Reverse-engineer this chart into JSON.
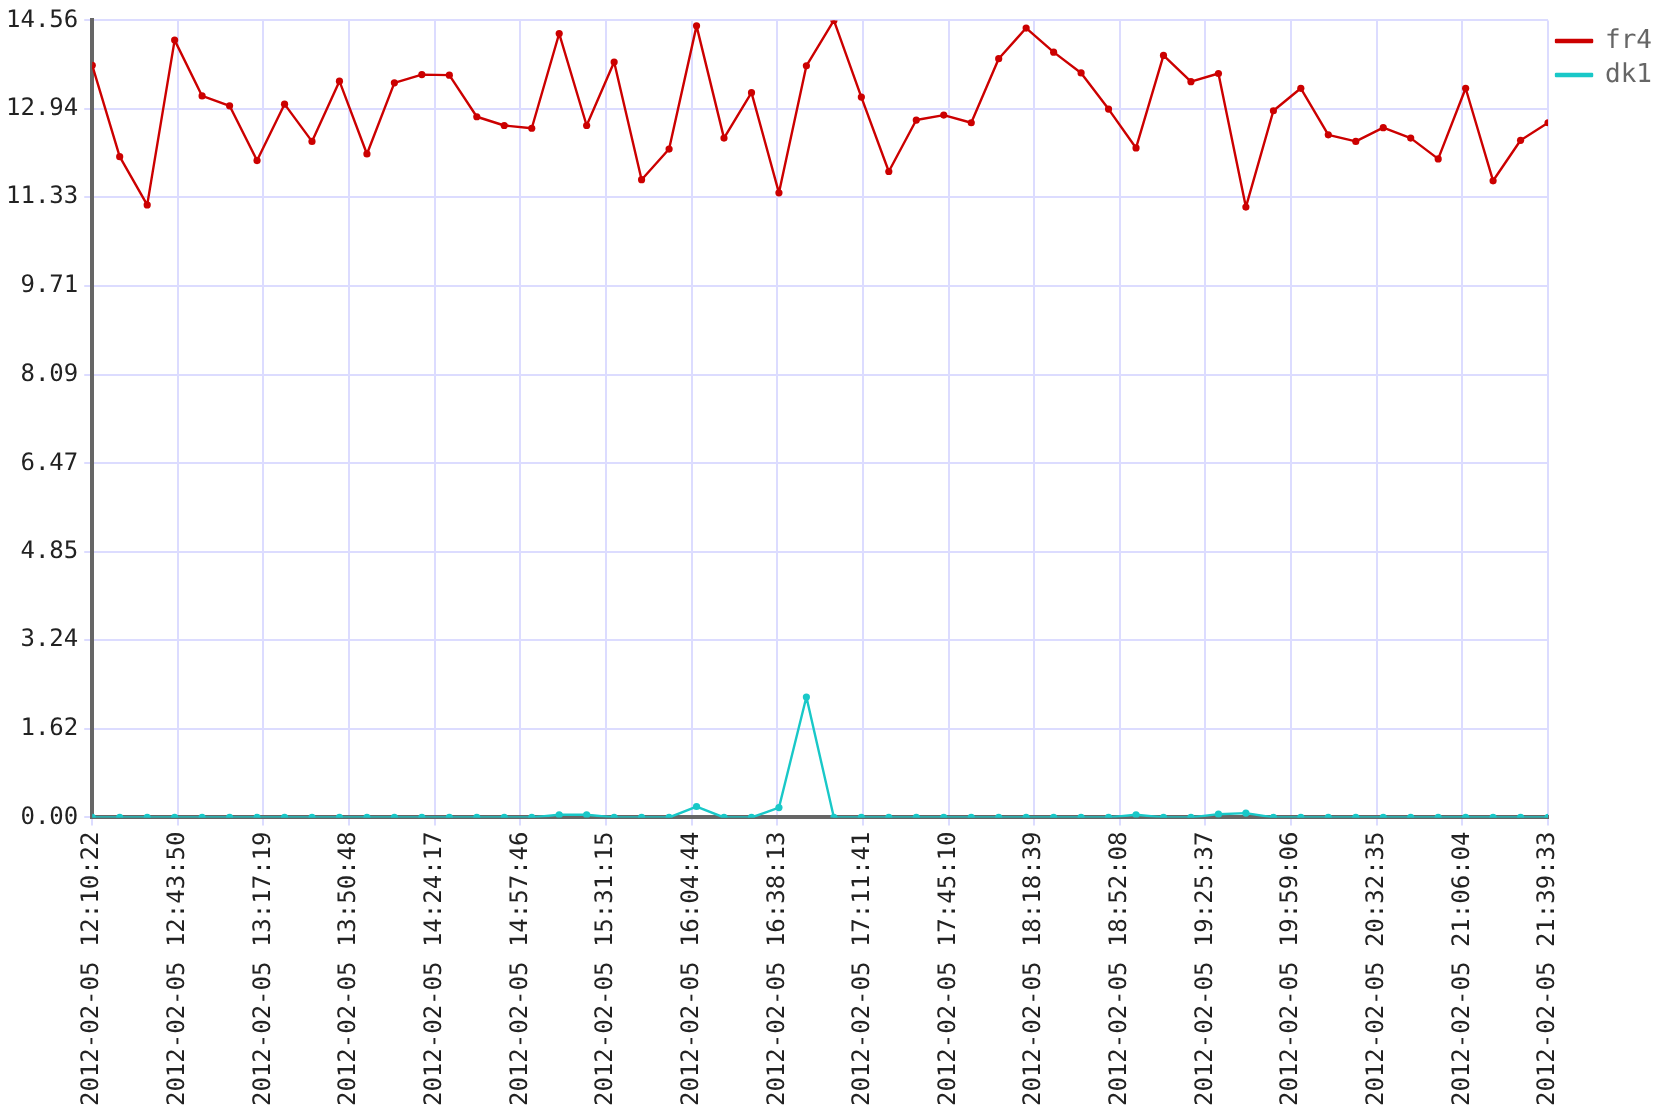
{
  "chart_data": {
    "type": "line",
    "x": [
      "2012-02-05T12:10:22",
      "2012-02-05T12:21:06",
      "2012-02-05T12:31:51",
      "2012-02-05T12:42:35",
      "2012-02-05T12:53:19",
      "2012-02-05T13:04:04",
      "2012-02-05T13:14:48",
      "2012-02-05T13:25:33",
      "2012-02-05T13:36:17",
      "2012-02-05T13:47:01",
      "2012-02-05T13:57:46",
      "2012-02-05T14:08:30",
      "2012-02-05T14:19:14",
      "2012-02-05T14:29:59",
      "2012-02-05T14:40:43",
      "2012-02-05T14:51:27",
      "2012-02-05T15:02:12",
      "2012-02-05T15:12:56",
      "2012-02-05T15:23:40",
      "2012-02-05T15:34:25",
      "2012-02-05T15:45:09",
      "2012-02-05T15:55:54",
      "2012-02-05T16:06:38",
      "2012-02-05T16:17:22",
      "2012-02-05T16:28:07",
      "2012-02-05T16:38:51",
      "2012-02-05T16:49:35",
      "2012-02-05T17:00:20",
      "2012-02-05T17:11:04",
      "2012-02-05T17:21:48",
      "2012-02-05T17:32:33",
      "2012-02-05T17:43:17",
      "2012-02-05T17:54:02",
      "2012-02-05T18:04:46",
      "2012-02-05T18:15:30",
      "2012-02-05T18:26:15",
      "2012-02-05T18:36:59",
      "2012-02-05T18:47:43",
      "2012-02-05T18:58:28",
      "2012-02-05T19:09:12",
      "2012-02-05T19:19:56",
      "2012-02-05T19:30:41",
      "2012-02-05T19:41:25",
      "2012-02-05T19:52:10",
      "2012-02-05T20:02:54",
      "2012-02-05T20:13:38",
      "2012-02-05T20:24:23",
      "2012-02-05T20:35:07",
      "2012-02-05T20:45:51",
      "2012-02-05T20:56:36",
      "2012-02-05T21:07:20",
      "2012-02-05T21:18:04",
      "2012-02-05T21:28:49",
      "2012-02-05T21:39:33"
    ],
    "series": [
      {
        "name": "fr4",
        "color": "#cc0000",
        "values": [
          13.74,
          12.07,
          11.19,
          14.2,
          13.18,
          13.0,
          12.0,
          13.03,
          12.35,
          13.45,
          12.12,
          13.42,
          13.57,
          13.56,
          12.8,
          12.64,
          12.59,
          14.32,
          12.64,
          13.8,
          11.65,
          12.21,
          14.46,
          12.41,
          13.24,
          11.41,
          13.73,
          14.56,
          13.16,
          11.8,
          12.74,
          12.83,
          12.69,
          13.86,
          14.42,
          13.98,
          13.6,
          12.94,
          12.23,
          13.92,
          13.44,
          13.59,
          11.15,
          12.91,
          13.32,
          12.47,
          12.35,
          12.6,
          12.41,
          12.03,
          13.32,
          11.63,
          12.37,
          12.69
        ]
      },
      {
        "name": "dk1",
        "color": "#19c8c8",
        "values": [
          0,
          0,
          0,
          0,
          0,
          0,
          0,
          0,
          0,
          0,
          0,
          0,
          0,
          0,
          0,
          0,
          0,
          0.05,
          0.05,
          0,
          0,
          0,
          0.2,
          0,
          0,
          0.18,
          2.2,
          0,
          0,
          0,
          0,
          0,
          0,
          0,
          0,
          0,
          0,
          0,
          0.05,
          0,
          0,
          0.06,
          0.08,
          0,
          0,
          0,
          0,
          0,
          0,
          0,
          0,
          0,
          0,
          0
        ]
      }
    ],
    "xlim": [
      "2012-02-05T12:10:22",
      "2012-02-05T21:39:33"
    ],
    "xticks": [
      {
        "value": "2012-02-05T12:10:22",
        "label": "2012-02-05 12:10:22"
      },
      {
        "value": "2012-02-05T12:43:50",
        "label": "2012-02-05 12:43:50"
      },
      {
        "value": "2012-02-05T13:17:19",
        "label": "2012-02-05 13:17:19"
      },
      {
        "value": "2012-02-05T13:50:48",
        "label": "2012-02-05 13:50:48"
      },
      {
        "value": "2012-02-05T14:24:17",
        "label": "2012-02-05 14:24:17"
      },
      {
        "value": "2012-02-05T14:57:46",
        "label": "2012-02-05 14:57:46"
      },
      {
        "value": "2012-02-05T15:31:15",
        "label": "2012-02-05 15:31:15"
      },
      {
        "value": "2012-02-05T16:04:44",
        "label": "2012-02-05 16:04:44"
      },
      {
        "value": "2012-02-05T16:38:13",
        "label": "2012-02-05 16:38:13"
      },
      {
        "value": "2012-02-05T17:11:41",
        "label": "2012-02-05 17:11:41"
      },
      {
        "value": "2012-02-05T17:45:10",
        "label": "2012-02-05 17:45:10"
      },
      {
        "value": "2012-02-05T18:18:39",
        "label": "2012-02-05 18:18:39"
      },
      {
        "value": "2012-02-05T18:52:08",
        "label": "2012-02-05 18:52:08"
      },
      {
        "value": "2012-02-05T19:25:37",
        "label": "2012-02-05 19:25:37"
      },
      {
        "value": "2012-02-05T19:59:06",
        "label": "2012-02-05 19:59:06"
      },
      {
        "value": "2012-02-05T20:32:35",
        "label": "2012-02-05 20:32:35"
      },
      {
        "value": "2012-02-05T21:06:04",
        "label": "2012-02-05 21:06:04"
      },
      {
        "value": "2012-02-05T21:39:33",
        "label": "2012-02-05 21:39:33"
      }
    ],
    "ylim": [
      0,
      14.56
    ],
    "yticks": [
      {
        "value": 0,
        "label": "0.00"
      },
      1.62,
      3.24,
      4.85,
      6.47,
      8.09,
      9.71,
      11.33,
      12.94,
      14.56
    ],
    "grid": true,
    "legend": "top right",
    "marker": "circle",
    "line_style": "solid"
  }
}
